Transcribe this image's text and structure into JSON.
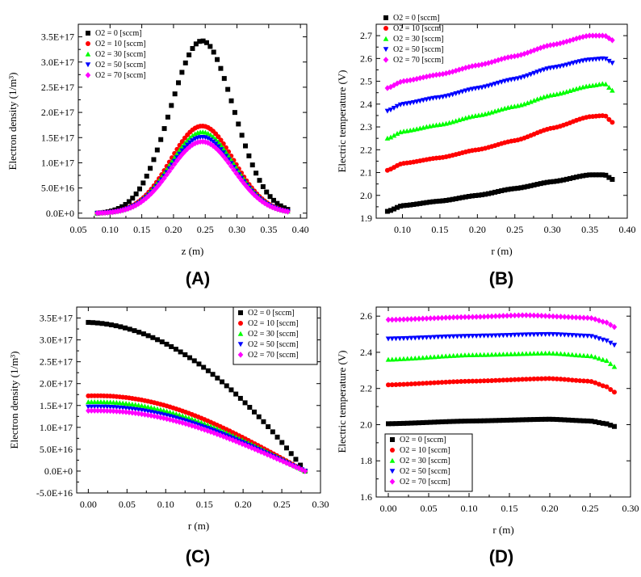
{
  "series_styles": [
    {
      "name": "O2 = 0 [sccm]",
      "color": "#000000",
      "marker": "square"
    },
    {
      "name": "O2 = 10 [sccm]",
      "color": "#ff0000",
      "marker": "circle"
    },
    {
      "name": "O2 = 30 [sccm]",
      "color": "#00ff00",
      "marker": "triangle-up"
    },
    {
      "name": "O2 = 50 [sccm]",
      "color": "#0000ff",
      "marker": "triangle-down"
    },
    {
      "name": "O2 = 70 [sccm]",
      "color": "#ff00ff",
      "marker": "diamond"
    }
  ],
  "chart_data": [
    {
      "panel": "(A)",
      "type": "scatter",
      "xlabel": "z (m)",
      "ylabel": "Electron density (1/m³)",
      "xlim": [
        0.05,
        0.41
      ],
      "ylim": [
        -1e+16,
        3.75e+17
      ],
      "xticks": [
        0.05,
        0.1,
        0.15,
        0.2,
        0.25,
        0.3,
        0.35,
        0.4
      ],
      "xtick_labels": [
        "0.05",
        "0.10",
        "0.15",
        "0.20",
        "0.25",
        "0.30",
        "0.35",
        "0.40"
      ],
      "yticks": [
        0,
        5e+16,
        1e+17,
        1.5e+17,
        2e+17,
        2.5e+17,
        3e+17,
        3.5e+17
      ],
      "ytick_labels": [
        "0.0E+0",
        "5.0E+16",
        "1.0E+17",
        "1.5E+17",
        "2.0E+17",
        "2.5E+17",
        "3.0E+17",
        "3.5E+17"
      ],
      "legend": "top-left",
      "curve": {
        "kind": "peak",
        "x0": 0.08,
        "x1": 0.38,
        "center": 0.245,
        "sigma": 0.05,
        "n_black": 55,
        "n_color": 75
      },
      "series": [
        {
          "name": "O2 = 0 [sccm]",
          "peak": 3.42e+17
        },
        {
          "name": "O2 = 10 [sccm]",
          "peak": 1.73e+17
        },
        {
          "name": "O2 = 30 [sccm]",
          "peak": 1.61e+17
        },
        {
          "name": "O2 = 50 [sccm]",
          "peak": 1.51e+17
        },
        {
          "name": "O2 = 70 [sccm]",
          "peak": 1.42e+17
        }
      ]
    },
    {
      "panel": "(B)",
      "type": "scatter",
      "xlabel": "r (m)",
      "ylabel": "Electric temperature (V)",
      "xlim": [
        0.065,
        0.4
      ],
      "ylim": [
        1.9,
        2.75
      ],
      "xticks": [
        0.1,
        0.15,
        0.2,
        0.25,
        0.3,
        0.35,
        0.4
      ],
      "xtick_labels": [
        "0.10",
        "0.15",
        "0.20",
        "0.25",
        "0.30",
        "0.35",
        "0.40"
      ],
      "yticks": [
        1.9,
        2.0,
        2.1,
        2.2,
        2.3,
        2.4,
        2.5,
        2.6,
        2.7
      ],
      "ytick_labels": [
        "1.9",
        "2.0",
        "2.1",
        "2.2",
        "2.3",
        "2.4",
        "2.5",
        "2.6",
        "2.7"
      ],
      "legend": "top-left",
      "curve": {
        "kind": "points",
        "x0": 0.08,
        "x1": 0.38,
        "n": 70
      },
      "series": [
        {
          "name": "O2 = 0 [sccm]",
          "pts": [
            [
              0.08,
              1.93
            ],
            [
              0.1,
              1.955
            ],
            [
              0.15,
              1.975
            ],
            [
              0.2,
              2.0
            ],
            [
              0.25,
              2.03
            ],
            [
              0.3,
              2.06
            ],
            [
              0.35,
              2.09
            ],
            [
              0.37,
              2.09
            ],
            [
              0.38,
              2.07
            ]
          ]
        },
        {
          "name": "O2 = 10 [sccm]",
          "pts": [
            [
              0.08,
              2.11
            ],
            [
              0.1,
              2.14
            ],
            [
              0.15,
              2.165
            ],
            [
              0.2,
              2.2
            ],
            [
              0.25,
              2.24
            ],
            [
              0.3,
              2.295
            ],
            [
              0.35,
              2.345
            ],
            [
              0.37,
              2.35
            ],
            [
              0.38,
              2.32
            ]
          ]
        },
        {
          "name": "O2 = 30 [sccm]",
          "pts": [
            [
              0.08,
              2.25
            ],
            [
              0.1,
              2.28
            ],
            [
              0.15,
              2.31
            ],
            [
              0.2,
              2.35
            ],
            [
              0.25,
              2.39
            ],
            [
              0.3,
              2.44
            ],
            [
              0.35,
              2.48
            ],
            [
              0.37,
              2.49
            ],
            [
              0.38,
              2.46
            ]
          ]
        },
        {
          "name": "O2 = 50 [sccm]",
          "pts": [
            [
              0.08,
              2.37
            ],
            [
              0.1,
              2.4
            ],
            [
              0.15,
              2.43
            ],
            [
              0.2,
              2.47
            ],
            [
              0.25,
              2.51
            ],
            [
              0.3,
              2.56
            ],
            [
              0.35,
              2.595
            ],
            [
              0.37,
              2.6
            ],
            [
              0.38,
              2.58
            ]
          ]
        },
        {
          "name": "O2 = 70 [sccm]",
          "pts": [
            [
              0.08,
              2.47
            ],
            [
              0.1,
              2.5
            ],
            [
              0.15,
              2.53
            ],
            [
              0.2,
              2.57
            ],
            [
              0.25,
              2.61
            ],
            [
              0.3,
              2.66
            ],
            [
              0.35,
              2.7
            ],
            [
              0.37,
              2.7
            ],
            [
              0.38,
              2.68
            ]
          ]
        }
      ]
    },
    {
      "panel": "(C)",
      "type": "scatter",
      "xlabel": "r (m)",
      "ylabel": "Electron density (1/m³)",
      "xlim": [
        -0.015,
        0.3
      ],
      "ylim": [
        -5e+16,
        3.75e+17
      ],
      "xticks": [
        0.0,
        0.05,
        0.1,
        0.15,
        0.2,
        0.25,
        0.3
      ],
      "xtick_labels": [
        "0.00",
        "0.05",
        "0.10",
        "0.15",
        "0.20",
        "0.25",
        "0.30"
      ],
      "yticks": [
        -5e+16,
        0,
        5e+16,
        1e+17,
        1.5e+17,
        2e+17,
        2.5e+17,
        3e+17,
        3.5e+17
      ],
      "ytick_labels": [
        "-5.0E+16",
        "0.0E+0",
        "5.0E+16",
        "1.0E+17",
        "1.5E+17",
        "2.0E+17",
        "2.5E+17",
        "3.0E+17",
        "3.5E+17"
      ],
      "legend": "top-right",
      "curve": {
        "kind": "decay",
        "x0": 0.0,
        "x1": 0.28,
        "n_black": 48,
        "n_color": 70
      },
      "series": [
        {
          "name": "O2 = 0 [sccm]",
          "peak": 3.4e+17
        },
        {
          "name": "O2 = 10 [sccm]",
          "peak": 1.72e+17
        },
        {
          "name": "O2 = 30 [sccm]",
          "peak": 1.58e+17
        },
        {
          "name": "O2 = 50 [sccm]",
          "peak": 1.47e+17
        },
        {
          "name": "O2 = 70 [sccm]",
          "peak": 1.38e+17
        }
      ]
    },
    {
      "panel": "(D)",
      "type": "scatter",
      "xlabel": "r (m)",
      "ylabel": "Electric temperature (V)",
      "xlim": [
        -0.015,
        0.3
      ],
      "ylim": [
        1.6,
        2.65
      ],
      "xticks": [
        0.0,
        0.05,
        0.1,
        0.15,
        0.2,
        0.25,
        0.3
      ],
      "xtick_labels": [
        "0.00",
        "0.05",
        "0.10",
        "0.15",
        "0.20",
        "0.25",
        "0.30"
      ],
      "yticks": [
        1.6,
        1.8,
        2.0,
        2.2,
        2.4,
        2.6
      ],
      "ytick_labels": [
        "1.6",
        "1.8",
        "2.0",
        "2.2",
        "2.4",
        "2.6"
      ],
      "legend": "bottom-left",
      "curve": {
        "kind": "points",
        "x0": 0.0,
        "x1": 0.28,
        "n": 60
      },
      "series": [
        {
          "name": "O2 = 0 [sccm]",
          "pts": [
            [
              0.0,
              2.005
            ],
            [
              0.1,
              2.02
            ],
            [
              0.2,
              2.03
            ],
            [
              0.25,
              2.02
            ],
            [
              0.27,
              2.005
            ],
            [
              0.28,
              1.99
            ]
          ]
        },
        {
          "name": "O2 = 10 [sccm]",
          "pts": [
            [
              0.0,
              2.22
            ],
            [
              0.1,
              2.24
            ],
            [
              0.2,
              2.255
            ],
            [
              0.25,
              2.24
            ],
            [
              0.27,
              2.21
            ],
            [
              0.28,
              2.18
            ]
          ]
        },
        {
          "name": "O2 = 30 [sccm]",
          "pts": [
            [
              0.0,
              2.36
            ],
            [
              0.1,
              2.385
            ],
            [
              0.2,
              2.395
            ],
            [
              0.25,
              2.38
            ],
            [
              0.27,
              2.355
            ],
            [
              0.28,
              2.32
            ]
          ]
        },
        {
          "name": "O2 = 50 [sccm]",
          "pts": [
            [
              0.0,
              2.475
            ],
            [
              0.1,
              2.49
            ],
            [
              0.2,
              2.5
            ],
            [
              0.25,
              2.49
            ],
            [
              0.27,
              2.465
            ],
            [
              0.28,
              2.44
            ]
          ]
        },
        {
          "name": "O2 = 70 [sccm]",
          "pts": [
            [
              0.0,
              2.58
            ],
            [
              0.1,
              2.595
            ],
            [
              0.17,
              2.605
            ],
            [
              0.25,
              2.59
            ],
            [
              0.27,
              2.565
            ],
            [
              0.28,
              2.54
            ]
          ]
        }
      ]
    }
  ]
}
